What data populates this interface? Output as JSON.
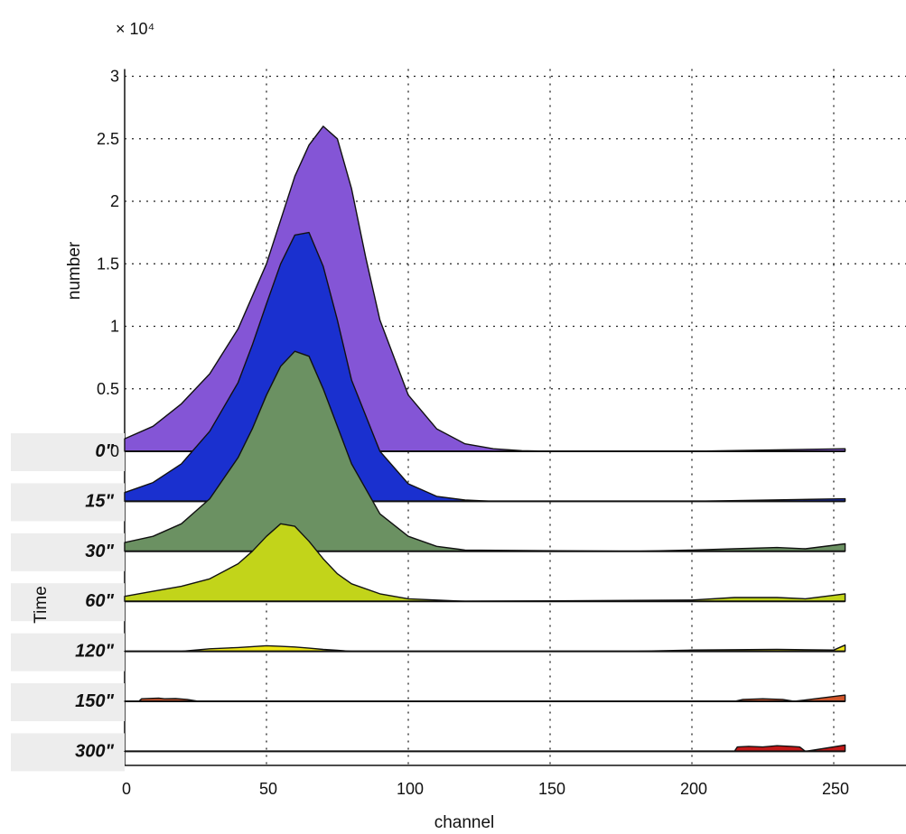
{
  "chart_data": {
    "type": "area",
    "title": "",
    "multiplier": "× 10⁴",
    "ylabel": "number",
    "xlabel": "channel",
    "group_label": "Time",
    "xlim": [
      0,
      258
    ],
    "ylim": [
      0,
      3
    ],
    "xticks": [
      "0",
      "50",
      "100",
      "150",
      "200",
      "250"
    ],
    "yticks": [
      "0",
      "0.5",
      "1",
      "1.5",
      "2",
      "2.5",
      "3"
    ],
    "grid": true,
    "series": [
      {
        "name": "0\"",
        "color": "#8455d6",
        "baseline": 0,
        "x": [
          0,
          10,
          20,
          30,
          40,
          50,
          55,
          60,
          65,
          70,
          75,
          80,
          85,
          90,
          100,
          110,
          120,
          130,
          140,
          150,
          200,
          254
        ],
        "y": [
          0.1,
          0.2,
          0.38,
          0.62,
          0.98,
          1.5,
          1.85,
          2.2,
          2.45,
          2.6,
          2.5,
          2.1,
          1.55,
          1.05,
          0.45,
          0.18,
          0.06,
          0.02,
          0.005,
          0,
          0,
          0.02
        ]
      },
      {
        "name": "15\"",
        "color": "#1a30cf",
        "baseline": -0.4,
        "x": [
          0,
          10,
          20,
          30,
          40,
          45,
          50,
          55,
          60,
          65,
          70,
          75,
          80,
          90,
          100,
          110,
          120,
          130,
          200,
          254
        ],
        "y": [
          0.07,
          0.15,
          0.3,
          0.56,
          0.95,
          1.25,
          1.58,
          1.9,
          2.13,
          2.15,
          1.88,
          1.45,
          0.97,
          0.4,
          0.14,
          0.04,
          0.01,
          0,
          0,
          0.02
        ]
      },
      {
        "name": "30\"",
        "color": "#6b9162",
        "baseline": -0.8,
        "x": [
          0,
          10,
          20,
          30,
          40,
          45,
          50,
          55,
          60,
          65,
          70,
          75,
          80,
          90,
          100,
          110,
          120,
          180,
          200,
          215,
          230,
          240,
          254
        ],
        "y": [
          0.07,
          0.12,
          0.22,
          0.42,
          0.75,
          0.98,
          1.25,
          1.48,
          1.6,
          1.56,
          1.3,
          1.0,
          0.7,
          0.3,
          0.12,
          0.04,
          0.01,
          0,
          0.01,
          0.02,
          0.03,
          0.02,
          0.06
        ]
      },
      {
        "name": "60\"",
        "color": "#c2d41a",
        "baseline": -1.2,
        "x": [
          0,
          10,
          20,
          30,
          40,
          45,
          50,
          55,
          60,
          65,
          70,
          75,
          80,
          90,
          100,
          110,
          120,
          200,
          215,
          230,
          240,
          254
        ],
        "y": [
          0.04,
          0.08,
          0.12,
          0.18,
          0.3,
          0.4,
          0.52,
          0.62,
          0.6,
          0.48,
          0.34,
          0.22,
          0.14,
          0.06,
          0.02,
          0.01,
          0,
          0.01,
          0.03,
          0.03,
          0.02,
          0.06
        ]
      },
      {
        "name": "120\"",
        "color": "#f0e814",
        "baseline": -1.6,
        "x": [
          0,
          20,
          25,
          30,
          40,
          50,
          55,
          60,
          65,
          70,
          75,
          80,
          100,
          180,
          200,
          230,
          250,
          254
        ],
        "y": [
          0,
          0,
          0.01,
          0.02,
          0.03,
          0.045,
          0.04,
          0.035,
          0.025,
          0.015,
          0.008,
          0,
          0,
          0,
          0.01,
          0.015,
          0.01,
          0.05
        ]
      },
      {
        "name": "150\"",
        "color": "#d2552a",
        "baseline": -2.0,
        "x": [
          0,
          5,
          6,
          12,
          14,
          18,
          22,
          26,
          40,
          215,
          218,
          225,
          232,
          236,
          254
        ],
        "y": [
          0,
          0,
          0.02,
          0.025,
          0.02,
          0.022,
          0.015,
          0,
          0,
          0,
          0.015,
          0.02,
          0.015,
          0,
          0.05
        ]
      },
      {
        "name": "300\"",
        "color": "#c41818",
        "baseline": -2.4,
        "x": [
          0,
          215,
          216,
          220,
          225,
          230,
          235,
          238,
          240,
          254
        ],
        "y": [
          0,
          0,
          0.035,
          0.04,
          0.035,
          0.045,
          0.04,
          0.035,
          0,
          0.05
        ]
      }
    ]
  }
}
